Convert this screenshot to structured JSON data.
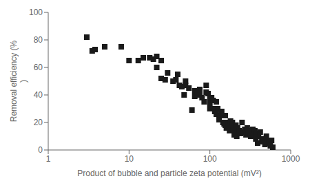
{
  "chart_data": {
    "type": "scatter",
    "x": [
      3,
      3.5,
      3.8,
      5,
      8,
      10,
      13,
      15,
      18,
      20,
      22,
      22,
      25,
      25,
      28,
      30,
      35,
      38,
      40,
      42,
      45,
      48,
      50,
      50,
      55,
      60,
      65,
      65,
      70,
      75,
      75,
      80,
      85,
      90,
      90,
      95,
      100,
      100,
      100,
      105,
      110,
      110,
      115,
      120,
      120,
      125,
      130,
      130,
      135,
      140,
      145,
      150,
      155,
      155,
      160,
      165,
      170,
      175,
      180,
      185,
      190,
      195,
      200,
      200,
      210,
      215,
      220,
      230,
      240,
      250,
      260,
      270,
      280,
      290,
      300,
      310,
      320,
      330,
      340,
      350,
      360,
      370,
      380,
      390,
      400,
      420,
      440,
      460,
      480,
      500,
      520,
      540,
      560,
      580,
      600
    ],
    "y": [
      82,
      72,
      73,
      75,
      75,
      65,
      65,
      67,
      67,
      66,
      60,
      68,
      65,
      52,
      51,
      56,
      50,
      51,
      55,
      47,
      46,
      40,
      47,
      50,
      45,
      29,
      39,
      43,
      40,
      44,
      40,
      38,
      35,
      42,
      47,
      41,
      38,
      34,
      30,
      38,
      36,
      30,
      28,
      26,
      35,
      30,
      24,
      22,
      25,
      28,
      20,
      19,
      18,
      25,
      16,
      20,
      18,
      14,
      21,
      19,
      20,
      15,
      13,
      11,
      18,
      10,
      16,
      14,
      12,
      20,
      13,
      15,
      11,
      16,
      12,
      14,
      10,
      12,
      15,
      11,
      14,
      8,
      12,
      5,
      10,
      13,
      6,
      8,
      4,
      10,
      7,
      5,
      3,
      7,
      2
    ],
    "xlabel": "Product of bubble and particle zeta potential (mV²)",
    "ylabel": "Removal efficiency (%\n)",
    "xlim": [
      1,
      1000
    ],
    "xticks": [
      1,
      10,
      100,
      1000
    ],
    "ylim": [
      0,
      100
    ],
    "yticks": [
      0,
      20,
      40,
      60,
      80,
      100
    ],
    "log": "x",
    "color": "#1a1a1a",
    "marker": "square",
    "grid": false
  }
}
